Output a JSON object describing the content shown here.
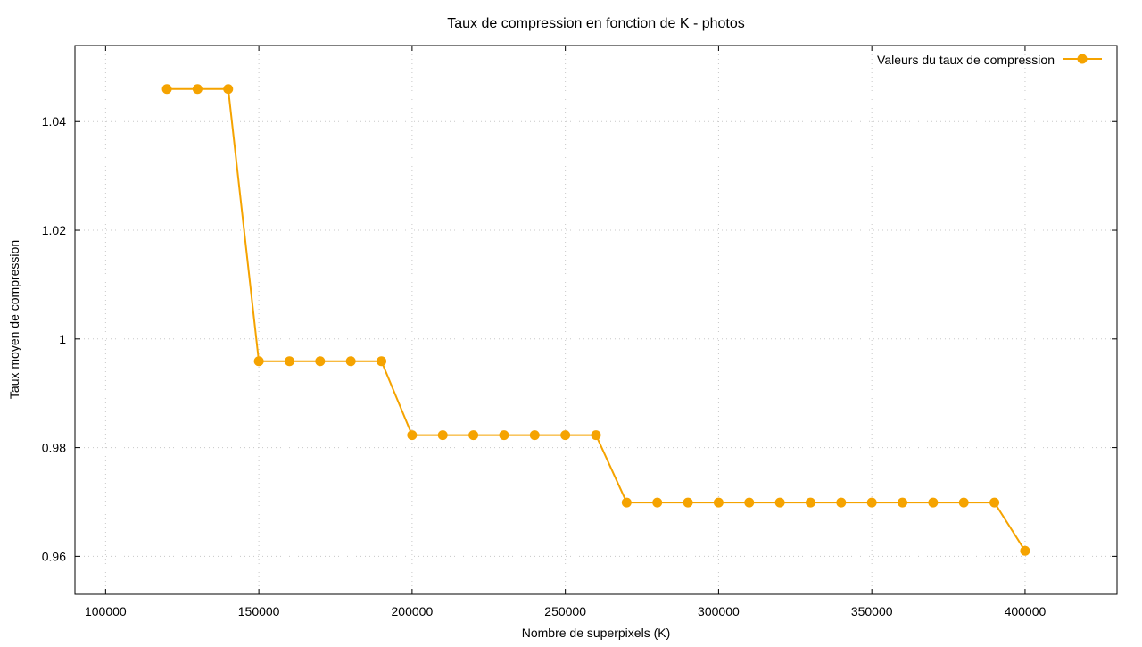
{
  "chart_data": {
    "type": "line",
    "title": "Taux de compression en fonction de K - photos",
    "xlabel": "Nombre de superpixels (K)",
    "ylabel": "Taux moyen de compression",
    "xlim": [
      90000,
      430000
    ],
    "ylim": [
      0.953,
      1.054
    ],
    "xticks": [
      100000,
      150000,
      200000,
      250000,
      300000,
      350000,
      400000
    ],
    "yticks": [
      0.96,
      0.98,
      1,
      1.02,
      1.04
    ],
    "xtick_labels": [
      "100000",
      "150000",
      "200000",
      "250000",
      "300000",
      "350000",
      "400000"
    ],
    "ytick_labels": [
      "0.96",
      "0.98",
      "1",
      "1.02",
      "1.04"
    ],
    "grid": true,
    "legend_position": "top-right",
    "series": [
      {
        "name": "Valeurs du taux de compression",
        "color": "#f5a300",
        "marker": "circle",
        "x": [
          120000,
          130000,
          140000,
          150000,
          160000,
          170000,
          180000,
          190000,
          200000,
          210000,
          220000,
          230000,
          240000,
          250000,
          260000,
          270000,
          280000,
          290000,
          300000,
          310000,
          320000,
          330000,
          340000,
          350000,
          360000,
          370000,
          380000,
          390000,
          400000
        ],
        "y": [
          1.046,
          1.046,
          1.046,
          0.9959,
          0.9959,
          0.9959,
          0.9959,
          0.9959,
          0.9823,
          0.9823,
          0.9823,
          0.9823,
          0.9823,
          0.9823,
          0.9823,
          0.9699,
          0.9699,
          0.9699,
          0.9699,
          0.9699,
          0.9699,
          0.9699,
          0.9699,
          0.9699,
          0.9699,
          0.9699,
          0.9699,
          0.9699,
          0.961
        ]
      }
    ]
  }
}
